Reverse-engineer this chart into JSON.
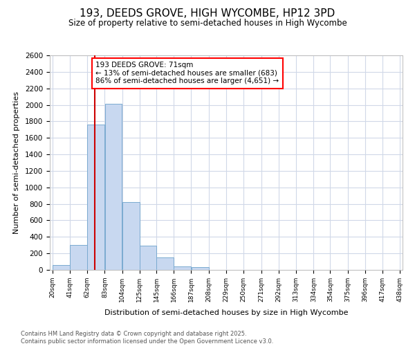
{
  "title": "193, DEEDS GROVE, HIGH WYCOMBE, HP12 3PD",
  "subtitle": "Size of property relative to semi-detached houses in High Wycombe",
  "xlabel": "Distribution of semi-detached houses by size in High Wycombe",
  "ylabel": "Number of semi-detached properties",
  "property_size": 71,
  "annotation_title": "193 DEEDS GROVE: 71sqm",
  "annotation_line1": "← 13% of semi-detached houses are smaller (683)",
  "annotation_line2": "86% of semi-detached houses are larger (4,651) →",
  "bar_edges": [
    20,
    41,
    62,
    83,
    104,
    125,
    145,
    166,
    187,
    208,
    229,
    250,
    271,
    292,
    313,
    334,
    354,
    375,
    396,
    417,
    438
  ],
  "bar_heights": [
    55,
    300,
    1760,
    2010,
    820,
    290,
    155,
    45,
    30,
    0,
    0,
    0,
    0,
    0,
    0,
    0,
    0,
    0,
    0,
    0
  ],
  "bar_color": "#c8d8f0",
  "bar_edge_color": "#7aaad0",
  "line_color": "#cc0000",
  "ylim": [
    0,
    2600
  ],
  "yticks": [
    0,
    200,
    400,
    600,
    800,
    1000,
    1200,
    1400,
    1600,
    1800,
    2000,
    2200,
    2400,
    2600
  ],
  "background_color": "#ffffff",
  "plot_background": "#ffffff",
  "grid_color": "#d0d8e8",
  "footer_line1": "Contains HM Land Registry data © Crown copyright and database right 2025.",
  "footer_line2": "Contains public sector information licensed under the Open Government Licence v3.0."
}
